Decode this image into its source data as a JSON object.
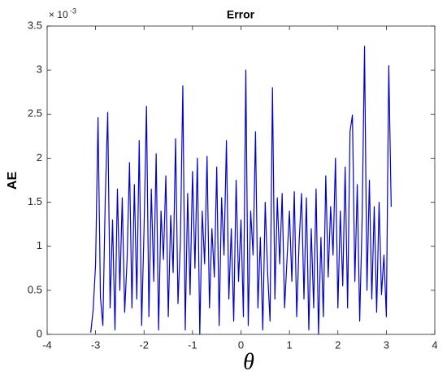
{
  "chart_data": {
    "type": "line",
    "title": "Error",
    "xlabel": "θ",
    "ylabel": "AE",
    "y_multiplier": {
      "base": "× 10",
      "exponent": "-3"
    },
    "x": [
      -3.1,
      -3.05,
      -3.0,
      -2.95,
      -2.9,
      -2.85,
      -2.8,
      -2.75,
      -2.7,
      -2.65,
      -2.6,
      -2.55,
      -2.5,
      -2.45,
      -2.4,
      -2.35,
      -2.3,
      -2.25,
      -2.2,
      -2.15,
      -2.1,
      -2.05,
      -2.0,
      -1.95,
      -1.9,
      -1.85,
      -1.8,
      -1.75,
      -1.7,
      -1.65,
      -1.6,
      -1.55,
      -1.5,
      -1.45,
      -1.4,
      -1.35,
      -1.3,
      -1.25,
      -1.2,
      -1.15,
      -1.1,
      -1.05,
      -1.0,
      -0.95,
      -0.9,
      -0.85,
      -0.8,
      -0.75,
      -0.7,
      -0.65,
      -0.6,
      -0.55,
      -0.5,
      -0.45,
      -0.4,
      -0.35,
      -0.3,
      -0.25,
      -0.2,
      -0.15,
      -0.1,
      -0.05,
      0.0,
      0.05,
      0.1,
      0.15,
      0.2,
      0.25,
      0.3,
      0.35,
      0.4,
      0.45,
      0.5,
      0.55,
      0.6,
      0.65,
      0.7,
      0.75,
      0.8,
      0.85,
      0.9,
      0.95,
      1.0,
      1.05,
      1.1,
      1.15,
      1.2,
      1.25,
      1.3,
      1.35,
      1.4,
      1.45,
      1.5,
      1.55,
      1.6,
      1.65,
      1.7,
      1.75,
      1.8,
      1.85,
      1.9,
      1.95,
      2.0,
      2.05,
      2.1,
      2.15,
      2.2,
      2.25,
      2.3,
      2.35,
      2.4,
      2.45,
      2.5,
      2.55,
      2.6,
      2.65,
      2.7,
      2.75,
      2.8,
      2.85,
      2.9,
      2.95,
      3.0,
      3.05,
      3.1
    ],
    "series": [
      {
        "name": "AE",
        "color": "#0000cd",
        "values": [
          0.02,
          0.28,
          0.8,
          2.46,
          0.42,
          0.1,
          1.55,
          2.52,
          0.3,
          1.3,
          0.05,
          1.65,
          0.5,
          1.55,
          0.25,
          0.85,
          1.95,
          0.3,
          1.7,
          0.4,
          2.2,
          0.1,
          1.2,
          2.59,
          0.2,
          1.65,
          0.6,
          2.05,
          0.05,
          1.4,
          0.85,
          1.8,
          0.2,
          1.35,
          0.7,
          2.22,
          0.35,
          1.05,
          2.82,
          0.05,
          1.6,
          0.45,
          1.85,
          0.75,
          2.0,
          0.0,
          1.4,
          0.8,
          2.02,
          0.3,
          1.2,
          0.65,
          1.9,
          0.1,
          1.55,
          0.9,
          2.2,
          0.4,
          1.2,
          0.15,
          1.75,
          0.6,
          1.3,
          0.2,
          3.0,
          0.1,
          1.4,
          0.9,
          2.3,
          0.3,
          1.1,
          0.05,
          1.5,
          0.7,
          0.15,
          2.8,
          0.4,
          1.55,
          0.8,
          1.6,
          0.3,
          0.85,
          1.4,
          0.6,
          1.62,
          0.2,
          1.05,
          1.6,
          0.4,
          1.55,
          0.05,
          1.2,
          0.3,
          1.65,
          0.0,
          1.1,
          0.2,
          1.8,
          0.65,
          1.45,
          0.9,
          2.0,
          0.3,
          1.4,
          0.55,
          1.9,
          0.3,
          2.3,
          2.49,
          0.6,
          1.7,
          0.15,
          1.3,
          3.27,
          0.5,
          1.75,
          0.4,
          1.45,
          0.25,
          1.5,
          0.45,
          0.9,
          0.2,
          3.05,
          1.45
        ]
      }
    ],
    "xlim": [
      -4,
      4
    ],
    "xticks": [
      -4,
      -3,
      -2,
      -1,
      0,
      1,
      2,
      3,
      4
    ],
    "ylim": [
      0,
      3.5
    ],
    "yticks": [
      0,
      0.5,
      1,
      1.5,
      2,
      2.5,
      3,
      3.5
    ]
  }
}
